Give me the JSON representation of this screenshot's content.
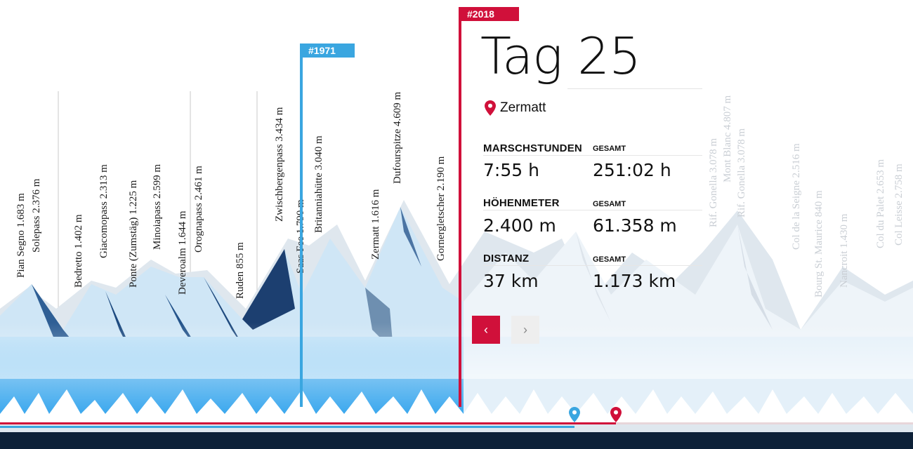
{
  "flags": [
    {
      "label": "#1971",
      "color": "#3aa6e0"
    },
    {
      "label": "#2018",
      "color": "#d0103a"
    }
  ],
  "peaks_left": [
    "Pian Segno 1.683 m",
    "Solepass 2.376 m",
    "Bedretto 1.402 m",
    "Giacomopass 2.313 m",
    "Ponte (Zumstäg) 1.225 m",
    "Minoiapass 2.599 m",
    "Deveroalm 1.644 m",
    "Orognapass 2.461 m",
    "Ruden 855 m",
    "Zwischbergenpass 3.434 m",
    "Saas Fee 1.790 m",
    "Britanniahütte 3.040 m",
    "Zermatt 1.616 m",
    "Dufourspitze 4.609 m",
    "Gornergletscher 2.190 m"
  ],
  "peaks_right": [
    "Rif. Gonella 3.078 m",
    "Mont Blanc 4.807 m",
    "Rif. Gonella 3.078 m",
    "Col de la Seigne 2.516 m",
    "Bourg St. Maurice 840 m",
    "Nancroit 1.430 m",
    "Col du Palet 2.653 m",
    "Col Leisse 2.758 m"
  ],
  "panel": {
    "title": "Tag 25",
    "location": "Zermatt",
    "stats": [
      {
        "label": "MARSCHSTUNDEN",
        "sub": "GESAMT",
        "value": "7:55 h",
        "total": "251:02 h"
      },
      {
        "label": "HÖHENMETER",
        "sub": "GESAMT",
        "value": "2.400 m",
        "total": "61.358 m"
      },
      {
        "label": "DISTANZ",
        "sub": "GESAMT",
        "value": "37 km",
        "total": "1.173 km"
      }
    ],
    "prev_label": "‹",
    "next_label": "›"
  },
  "colors": {
    "accent_red": "#d0103a",
    "accent_blue": "#3aa6e0",
    "footer": "#0d2138"
  },
  "icons": [
    "location-pin-icon",
    "chevron-left-icon",
    "chevron-right-icon",
    "timeline-marker-icon"
  ]
}
